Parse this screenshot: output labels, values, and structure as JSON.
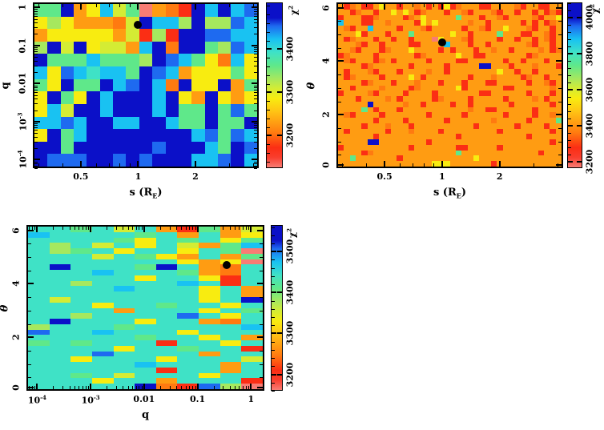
{
  "palette": {
    "B": "#0b10c8",
    "b": "#1e6af0",
    "c": "#19c2f2",
    "T": "#3fe2c6",
    "g": "#5fe88a",
    "G": "#a6e85e",
    "y": "#d4ec34",
    "Y": "#f8ec10",
    "O": "#ff9c12",
    "o": "#ff7a10",
    "R": "#fb2e14",
    "P": "#f87c74"
  },
  "chart_data": [
    {
      "id": "top-left",
      "type": "heatmap",
      "xlabel_pre": "s (R",
      "xlabel_sub": "E",
      "xlabel_post": ")",
      "ylabel": "q",
      "x_scale": "log",
      "x_min": 0.28,
      "x_max": 4.3,
      "y_scale": "log",
      "y_min": 6e-05,
      "y_max": 1.35,
      "x_ticks": [
        {
          "label": "0.5",
          "v": 0.5
        },
        {
          "label": "1",
          "v": 1
        },
        {
          "label": "2",
          "v": 2
        }
      ],
      "y_ticks": [
        {
          "label": "1",
          "v": 1
        },
        {
          "label": "0.1",
          "v": 0.1
        },
        {
          "label": "0.01",
          "v": 0.01
        },
        {
          "label": "10",
          "sup": "-3",
          "v": 0.001
        },
        {
          "label": "10",
          "sup": "-4",
          "v": 0.0001
        }
      ],
      "colorbar": {
        "label": "χ",
        "label_sup": "2",
        "top_value": 3508,
        "bottom_value": 3125,
        "minor_step": 20,
        "ticks": [
          {
            "label": "3400",
            "v": 3400
          },
          {
            "label": "3300",
            "v": 3300
          },
          {
            "label": "3200",
            "v": 3200
          }
        ]
      },
      "best_fit": {
        "x": 1.0,
        "y": 0.35
      },
      "grid": [
        "ggBOYcygPOoRBcBcb",
        "YGYOOOoyBccGBGGbc",
        "OYYYYYOyRGRBBbbcc",
        "GByBYyyOcBoBBgGbc",
        "BgggcgggGBbcgYocY",
        "cYbcTccgBbcOYYYgY",
        "gYBggBcbBcoBYYBOg",
        "YBgYBcBBBcBYOBYOY",
        "YcyBBcBBBcBggBgbg",
        "ccbcBBccBBcggBggB",
        "YBgcBBBBBBBBcbgbc",
        "BBgBBBBBBbBBBcgBb",
        "BbbbBBbBbBBBccbBc"
      ]
    },
    {
      "id": "top-right",
      "type": "heatmap",
      "xlabel_pre": "s (R",
      "xlabel_sub": "E",
      "xlabel_post": ")",
      "ylabel": "θ",
      "x_scale": "log",
      "x_min": 0.28,
      "x_max": 4.3,
      "y_scale": "linear",
      "y_min": 0,
      "y_max": 6.2,
      "x_ticks": [
        {
          "label": "0.5",
          "v": 0.5
        },
        {
          "label": "1",
          "v": 1
        },
        {
          "label": "2",
          "v": 2
        }
      ],
      "y_ticks": [
        {
          "label": "0",
          "v": 0
        },
        {
          "label": "2",
          "v": 2
        },
        {
          "label": "4",
          "v": 4
        },
        {
          "label": "6",
          "v": 6
        }
      ],
      "colorbar": {
        "label": "χ",
        "label_sup": "2",
        "top_value": 4085,
        "bottom_value": 3165,
        "minor_step": 40,
        "ticks": [
          {
            "label": "4000",
            "v": 4000
          },
          {
            "label": "3800",
            "v": 3800
          },
          {
            "label": "3600",
            "v": 3600
          },
          {
            "label": "3400",
            "v": 3400
          },
          {
            "label": "3200",
            "v": 3200
          }
        ]
      },
      "best_fit": {
        "x": 1.0,
        "y": 4.7
      },
      "grid": [
        "ORoORROYOOROOoORORYRoOOORROOOOoROORROO",
        "OORoOOROOYOYORoOOOROOoROOOoROOROORORoR",
        "ROOORRoOOOORoOYOOOOOgOOOROOoROOOOoROOY",
        "cOOORROOoOOOORYOYOOOOOoOOROOOOORORORoO",
        "OoROOcOOOOROOOoROOOOOROOoROOYOOOoROORO",
        "OOOYROOOROOOgOOOOOOYOOROOOOgOOORROOoRO",
        "ORoOOOROOROOROOOPYOOOoROOOOROOROOROoRO",
        "OOOoROOROOOORROOOOcOOOROOROOOOOOoROORO",
        "OOoROOORoOOOYOOOOROROOOROOoOOROOOOoORo",
        "RoOOOOROOOOOORoOOOOOYOORROOOOOOORoOOOO",
        "OoROOORoOROOOOOROOOORROOOOOOROOROOOROO",
        "OOOORoOOOOOOROOOOOROOOOOBBOOOROOOoOOOR",
        "OROOOoROOOROOOOoOOROOOOOOOOYOOROOROOOO",
        "ORoOOOOROOOOYOROOOOOOOROOOoOOOORoOOROO",
        "OOOORoOOOROOOoOOOROOOROOORROOOOOROOoRO",
        "OOROOOOoOOOORoOOOOOOYROOOOOORROOOOOOoO",
        "ROOOOoROOOOROOOOROOOOOOORROOOOOOROOORO",
        "OOOROOOOoOROOOOORoOOOOROOOOOROOOOoOROO",
        "OOOOOBOOOOOoOOROOOOROOROOOOOOROOOOOORO",
        "OOOOgOROOOROOOOOOOOOOOoOORROOOOOOROOOO",
        "OoROOOOROOOOOOOROOOOOROOOOOOROOOOROOoO",
        "OOOOOOROOOOROOOOOOROOOOOOOoOOOOOROOOOg",
        "OOOOROOOoOOOROOOOOOOOOOROOOOOOROOOOROO",
        "OROOOOOOROOOoOOOOROOOOOOOOOROOOOOOOORO",
        "OOOOOOROOOOOOOOOOOOOROOOOOOOOOOOROOOOO",
        "OOOOOBBOOOOOOOOROOOOOOOOOOOOOOOOOOOORO",
        "ROOOOOOOOOOOROOOOOOORROOOOOROOOOOOOOOO",
        "OOOORoOOOOOOOOOOOOOOgOOOOOOOOOOOOOROOO",
        "OOgOOOOOOOROOOOOOOOOOOOYOOOOOOOOOOOOOO",
        "OOOOOOOOOOOOOOOOYYYOOOOOOOROOOOOOOOOOO"
      ]
    },
    {
      "id": "bottom-left",
      "type": "heatmap",
      "xlabel_pre": "q",
      "ylabel": "θ",
      "x_scale": "log",
      "x_min": 6.3e-05,
      "x_max": 1.78,
      "y_scale": "linear",
      "y_min": 0,
      "y_max": 6.2,
      "x_ticks": [
        {
          "label": "10",
          "sup": "-4",
          "v": 0.0001
        },
        {
          "label": "10",
          "sup": "-3",
          "v": 0.001
        },
        {
          "label": "0.01",
          "v": 0.01
        },
        {
          "label": "0.1",
          "v": 0.1
        },
        {
          "label": "1",
          "v": 1
        }
      ],
      "y_ticks": [
        {
          "label": "0",
          "v": 0
        },
        {
          "label": "2",
          "v": 2
        },
        {
          "label": "4",
          "v": 4
        },
        {
          "label": "6",
          "v": 6
        }
      ],
      "colorbar": {
        "label": "χ",
        "label_sup": "2",
        "top_value": 3565,
        "bottom_value": 3160,
        "minor_step": 20,
        "ticks": [
          {
            "label": "3500",
            "v": 3500
          },
          {
            "label": "3400",
            "v": 3400
          },
          {
            "label": "3300",
            "v": 3300
          },
          {
            "label": "3200",
            "v": 3200
          }
        ]
      },
      "best_fit": {
        "x": 0.35,
        "y": 4.7
      },
      "grid": [
        "TTgTyTORgOy",
        "cTTTTgTOTOY",
        "TTTTgYTgTYg",
        "TGTyTYTyOgc",
        "TGgTYTTYTgP",
        "TTTyTgYOTOg",
        "TTTTTTTYOYP",
        "TBTTTgBTOoT",
        "TTTcTTTgOoT",
        "TTTTTYTTYRT",
        "TTGTTTTcTRT",
        "TTTTcTTTYTO",
        "TTTTTTTTYTO",
        "TyTTTTTTYTB",
        "TTTYTTgTTYT",
        "TTTTOTTTYTg",
        "TTGTTTTbTYT",
        "TBTTTYTTOoT",
        "GTTTgTTTTTc",
        "bTTcTTTYTTT",
        "TTTTTgTTYTO",
        "gTgTTTRTTYT",
        "TTTTYTTgTTR",
        "TTTbTTTTOTT",
        "TTYTTTYTTTy",
        "TTTTTcTTTOT",
        "TTTTTTRTTOT",
        "TTgTyTTTYTT",
        "TTTYTTOTTTR",
        "TTTTTBoRbGP"
      ]
    }
  ]
}
